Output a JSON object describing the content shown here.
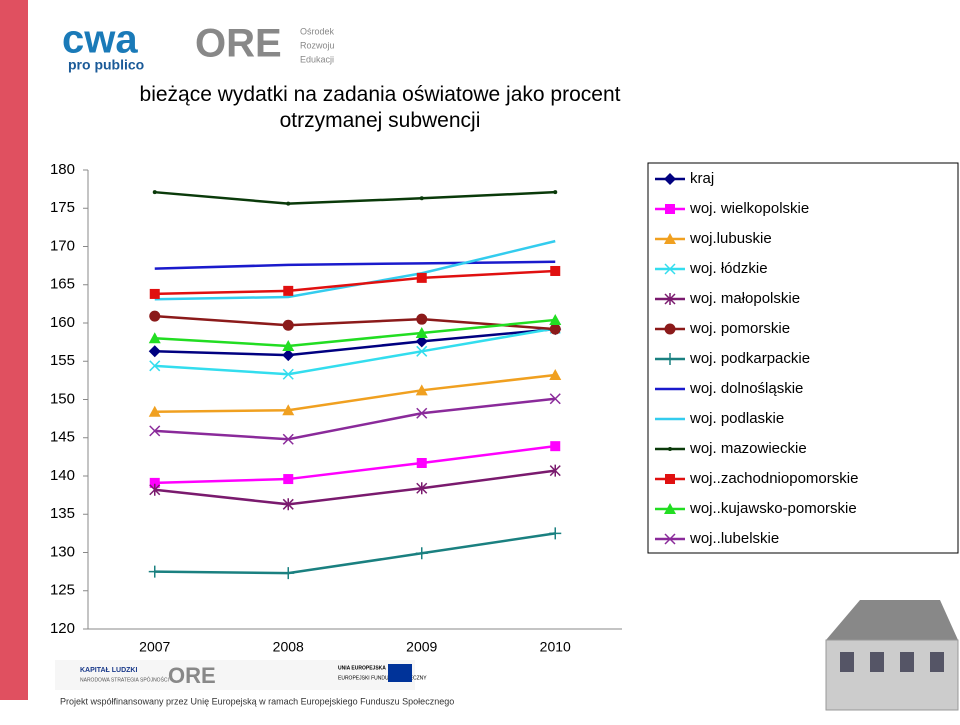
{
  "header": {
    "logo1": "cwa",
    "logo1_sub": "pro publico",
    "logo2": "ORE",
    "logo2_sub": [
      "Ośrodek",
      "Rozwoju",
      "Edukacji"
    ]
  },
  "chart_data": {
    "type": "line",
    "title": "bieżące wydatki na zadania oświatowe jako procent otrzymanej subwencji",
    "categories": [
      "2007",
      "2008",
      "2009",
      "2010"
    ],
    "ylim": [
      120,
      180
    ],
    "yticks": [
      120,
      125,
      130,
      135,
      140,
      145,
      150,
      155,
      160,
      165,
      170,
      175,
      180
    ],
    "grid": false,
    "legend": "right",
    "series": [
      {
        "name": "kraj",
        "color": "#000080",
        "marker": "diamond",
        "values": [
          156.3,
          155.8,
          157.6,
          159.2
        ]
      },
      {
        "name": "woj. wielkopolskie",
        "color": "#ff00ff",
        "marker": "square",
        "values": [
          139.1,
          139.6,
          141.7,
          143.9
        ]
      },
      {
        "name": "woj.lubuskie",
        "color": "#f0a020",
        "marker": "triangle",
        "values": [
          148.4,
          148.6,
          151.2,
          153.2
        ]
      },
      {
        "name": "woj. łódzkie",
        "color": "#33ddee",
        "marker": "x",
        "values": [
          154.4,
          153.3,
          156.3,
          159.3
        ]
      },
      {
        "name": "woj. małopolskie",
        "color": "#7a1a6e",
        "marker": "star",
        "values": [
          138.2,
          136.3,
          138.4,
          140.7
        ]
      },
      {
        "name": "woj. pomorskie",
        "color": "#8b1a1a",
        "marker": "circle",
        "values": [
          160.9,
          159.7,
          160.5,
          159.2
        ]
      },
      {
        "name": "woj. podkarpackie",
        "color": "#1a8080",
        "marker": "plus",
        "values": [
          127.5,
          127.3,
          129.9,
          132.5
        ]
      },
      {
        "name": "woj. dolnośląskie",
        "color": "#1a1acc",
        "marker": "none",
        "values": [
          167.1,
          167.6,
          167.8,
          168.0
        ]
      },
      {
        "name": "woj. podlaskie",
        "color": "#33ccee",
        "marker": "none",
        "values": [
          163.1,
          163.4,
          166.5,
          170.7
        ]
      },
      {
        "name": "woj. mazowieckie",
        "color": "#0a3a0a",
        "marker": "dot",
        "values": [
          177.1,
          175.6,
          176.3,
          177.1
        ]
      },
      {
        "name": "woj..zachodniopomorskie",
        "color": "#e01010",
        "marker": "square",
        "values": [
          163.8,
          164.2,
          165.9,
          166.8
        ]
      },
      {
        "name": "woj..kujawsko-pomorskie",
        "color": "#22dd22",
        "marker": "triangle",
        "values": [
          158.0,
          157.0,
          158.7,
          160.4
        ]
      },
      {
        "name": "woj..lubelskie",
        "color": "#8a2a9a",
        "marker": "x",
        "values": [
          145.9,
          144.8,
          148.2,
          150.1
        ]
      }
    ]
  },
  "footer": {
    "kl": "KAPITAŁ LUDZKI",
    "kl_sub": "NARODOWA STRATEGIA SPÓJNOŚCI",
    "ore": "ORE",
    "ue": "UNIA EUROPEJSKA",
    "ue_sub": "EUROPEJSKI FUNDUSZ SPOŁECZNY",
    "note": "Projekt współfinansowany przez Unię Europejską w ramach Europejskiego Funduszu Społecznego"
  }
}
